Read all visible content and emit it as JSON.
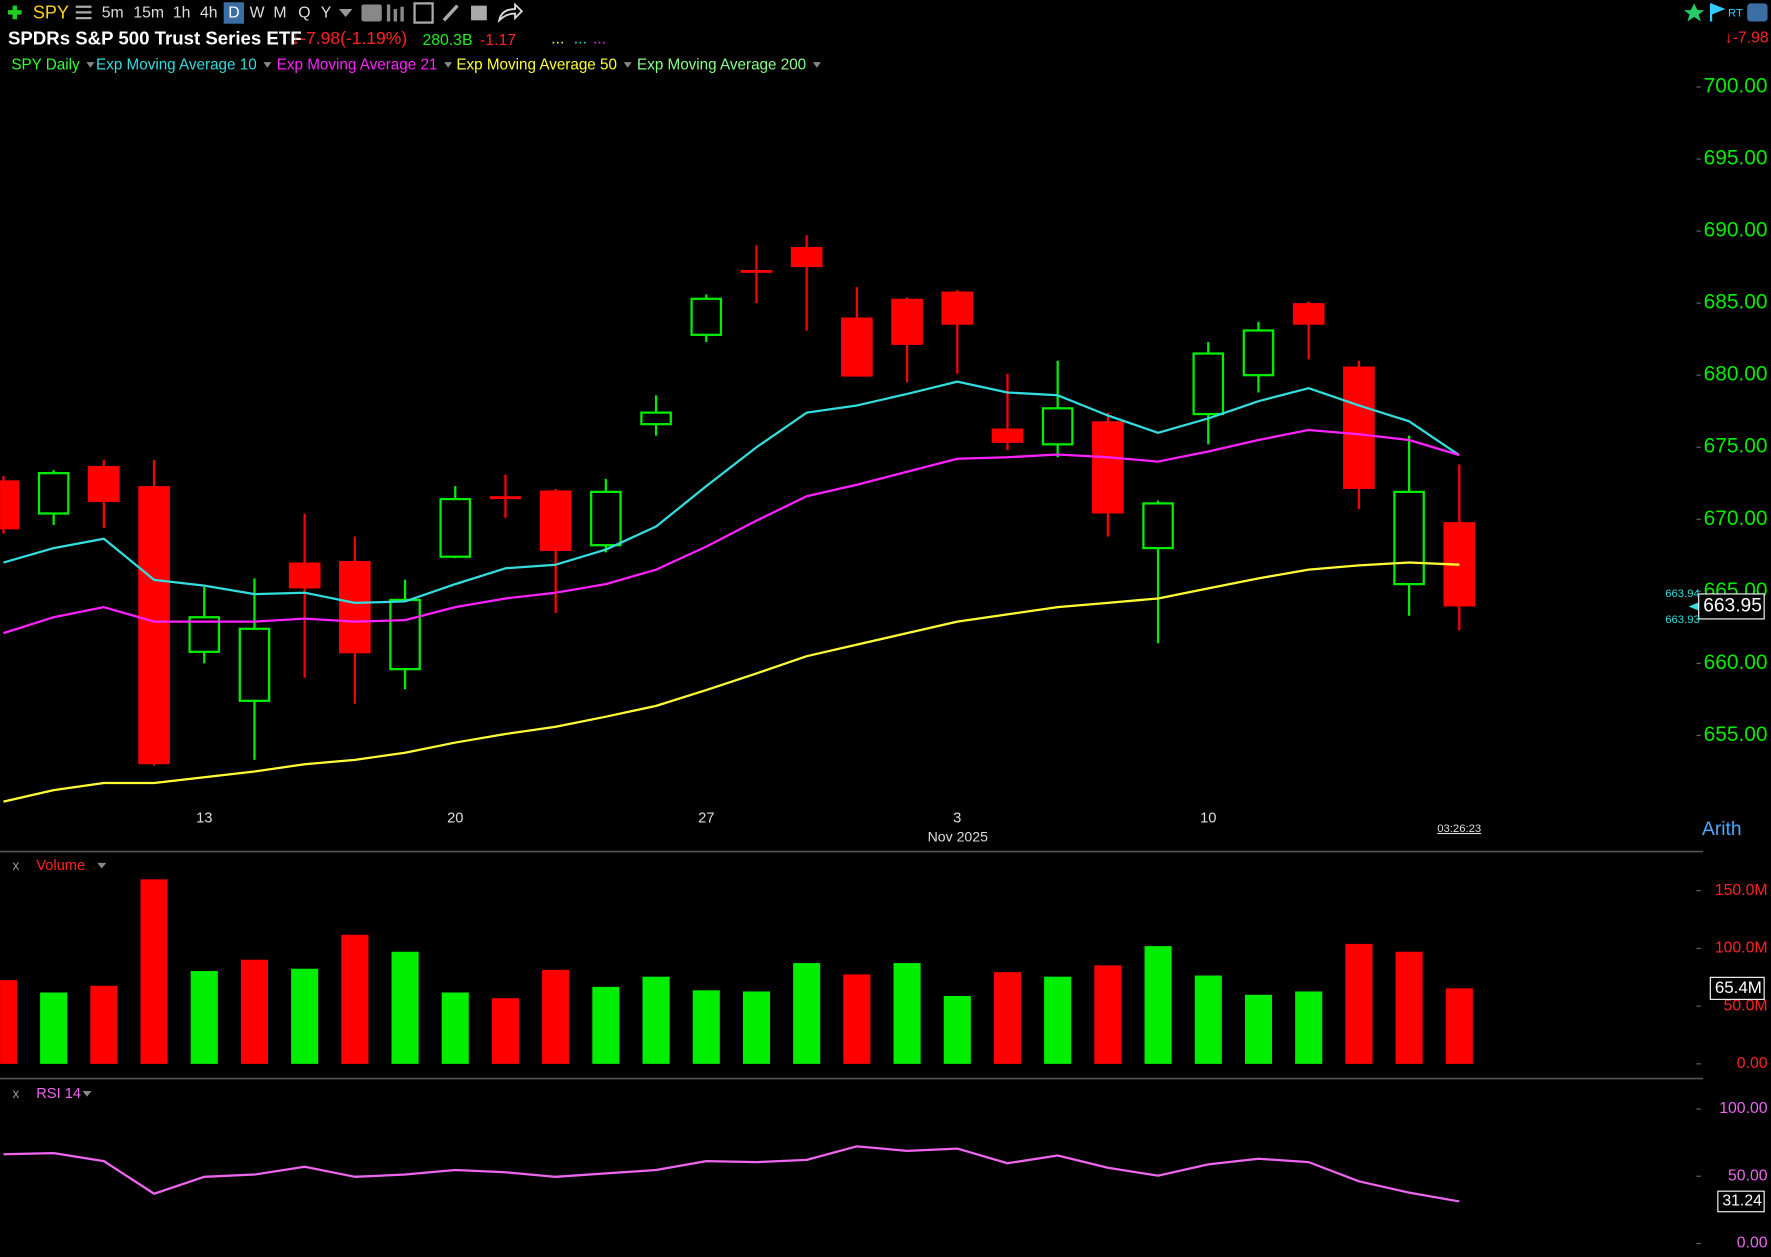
{
  "toolbar": {
    "symbol": "SPY",
    "intervals": [
      "5m",
      "15m",
      "1h",
      "4h",
      "D",
      "W",
      "M",
      "Q",
      "Y"
    ],
    "realtime": "RT"
  },
  "header": {
    "name": "SPDRs S&P 500 Trust Series ETF",
    "change": "↓-7.98(-1.19%)",
    "market_cap": "280.3B",
    "eps": "-1.17",
    "extras": [
      "...",
      "...",
      "..."
    ],
    "right_change": "↓-7.98",
    "scale_mode": "Arith",
    "clock": "03:26:23"
  },
  "chart_data": [
    {
      "type": "candlestick",
      "categories": [
        null,
        null,
        null,
        null,
        "13",
        null,
        null,
        null,
        null,
        "20",
        null,
        null,
        null,
        null,
        "27",
        null,
        null,
        null,
        null,
        "3",
        null,
        null,
        null,
        null,
        "10",
        null,
        null,
        null,
        null,
        null
      ],
      "xlabel": "Nov 2025",
      "up_color": "#00ee00",
      "down_color": "#ff0000",
      "series": [
        {
          "name": "SPY Daily",
          "color": "#33ff33",
          "open": [
            672.7,
            670.4,
            673.7,
            672.3,
            660.8,
            657.4,
            667.0,
            667.1,
            659.6,
            667.4,
            671.6,
            672.0,
            668.2,
            676.6,
            682.8,
            687.3,
            688.9,
            684.0,
            685.3,
            685.8,
            676.3,
            675.2,
            676.8,
            668.0,
            677.3,
            680.0,
            685.0,
            680.6,
            665.5,
            669.8
          ],
          "high": [
            673.0,
            673.4,
            674.1,
            674.1,
            665.3,
            665.9,
            670.4,
            668.8,
            665.8,
            672.3,
            673.1,
            672.1,
            672.8,
            678.6,
            685.6,
            689.0,
            689.7,
            686.1,
            685.4,
            685.9,
            680.1,
            681.0,
            677.4,
            671.3,
            682.3,
            683.7,
            685.1,
            681.0,
            675.8,
            673.8
          ],
          "low": [
            669.0,
            669.6,
            669.4,
            652.9,
            660.0,
            653.3,
            659.0,
            657.2,
            658.2,
            667.3,
            670.1,
            663.5,
            667.7,
            675.8,
            682.3,
            685.0,
            683.1,
            679.9,
            679.5,
            680.1,
            674.8,
            674.3,
            668.8,
            661.4,
            675.2,
            678.8,
            681.1,
            670.7,
            663.3,
            662.3
          ],
          "close": [
            669.3,
            673.2,
            671.2,
            653.0,
            663.2,
            662.4,
            665.2,
            660.7,
            664.4,
            671.4,
            671.4,
            667.8,
            671.9,
            677.4,
            685.3,
            687.1,
            687.5,
            679.9,
            682.1,
            683.5,
            675.3,
            677.7,
            670.4,
            671.1,
            681.5,
            683.1,
            683.5,
            672.1,
            671.9,
            663.95
          ]
        },
        {
          "name": "Exp Moving Average 10",
          "color": "#33dddd",
          "values": [
            667.0,
            668.0,
            668.65,
            665.8,
            665.4,
            664.8,
            664.9,
            664.2,
            664.3,
            665.5,
            666.6,
            666.85,
            667.9,
            669.5,
            672.3,
            675.0,
            677.4,
            677.9,
            678.7,
            679.55,
            678.8,
            678.6,
            677.2,
            676.0,
            677.0,
            678.2,
            679.1,
            677.9,
            676.8,
            674.45
          ]
        },
        {
          "name": "Exp Moving Average 21",
          "color": "#ff22ff",
          "values": [
            662.1,
            663.2,
            663.9,
            662.9,
            662.9,
            662.9,
            663.1,
            662.9,
            663.0,
            663.9,
            664.5,
            664.9,
            665.5,
            666.5,
            668.1,
            669.9,
            671.6,
            672.4,
            673.3,
            674.2,
            674.3,
            674.5,
            674.3,
            674.0,
            674.7,
            675.5,
            676.2,
            675.9,
            675.5,
            674.45
          ]
        },
        {
          "name": "Exp Moving Average 50",
          "color": "#ffff33",
          "values": [
            650.4,
            651.2,
            651.7,
            651.7,
            652.1,
            652.5,
            653.0,
            653.3,
            653.8,
            654.5,
            655.1,
            655.6,
            656.3,
            657.05,
            658.15,
            659.3,
            660.5,
            661.3,
            662.1,
            662.9,
            663.4,
            663.9,
            664.2,
            664.5,
            665.2,
            665.9,
            666.5,
            666.8,
            667.0,
            666.85
          ]
        },
        {
          "name": "Exp Moving Average 200",
          "color": "#88ff88"
        }
      ],
      "ylim": [
        650.2,
        700.8
      ],
      "yticks": [
        {
          "value": 655,
          "label": "655.00"
        },
        {
          "value": 660,
          "label": "660.00"
        },
        {
          "value": 665,
          "label": "665.00"
        },
        {
          "value": 670,
          "label": "670.00"
        },
        {
          "value": 675,
          "label": "675.00"
        },
        {
          "value": 680,
          "label": "680.00"
        },
        {
          "value": 685,
          "label": "685.00"
        },
        {
          "value": 690,
          "label": "690.00"
        },
        {
          "value": 695,
          "label": "695.00"
        },
        {
          "value": 700,
          "label": "700.00"
        }
      ],
      "axis_color": "#00ee00",
      "last_label": "663.95",
      "ask_label": "663.94",
      "bid_label": "663.93"
    },
    {
      "type": "bar",
      "title": "Volume",
      "title_color": "#ff2222",
      "values": [
        72.5,
        61.8,
        67.6,
        159.8,
        80.4,
        90.2,
        82.4,
        111.8,
        97.1,
        61.8,
        56.9,
        81.4,
        66.7,
        75.5,
        63.7,
        62.7,
        87.3,
        77.5,
        87.3,
        58.8,
        79.4,
        75.5,
        85.3,
        102.0,
        76.5,
        59.8,
        62.7,
        103.9,
        97.1,
        65.4
      ],
      "colors": [
        "#ff0000",
        "#00ee00",
        "#ff0000",
        "#ff0000",
        "#00ee00",
        "#ff0000",
        "#00ee00",
        "#ff0000",
        "#00ee00",
        "#00ee00",
        "#ff0000",
        "#ff0000",
        "#00ee00",
        "#00ee00",
        "#00ee00",
        "#00ee00",
        "#00ee00",
        "#ff0000",
        "#00ee00",
        "#00ee00",
        "#ff0000",
        "#00ee00",
        "#ff0000",
        "#00ee00",
        "#00ee00",
        "#00ee00",
        "#00ee00",
        "#ff0000",
        "#ff0000",
        "#ff0000"
      ],
      "ylim": [
        0,
        178
      ],
      "yticks": [
        {
          "value": 0,
          "label": "0.00"
        },
        {
          "value": 50,
          "label": "50.0M"
        },
        {
          "value": 100,
          "label": "100.0M"
        },
        {
          "value": 150,
          "label": "150.0M"
        }
      ],
      "axis_color": "#ff2222",
      "last_label": "65.4M"
    },
    {
      "type": "line",
      "title": "RSI 14",
      "color": "#ee66ee",
      "values": [
        66.4,
        67.2,
        61.3,
        37.0,
        49.6,
        51.3,
        57.1,
        49.6,
        51.3,
        54.6,
        52.9,
        49.6,
        52.1,
        54.6,
        61.3,
        60.5,
        62.2,
        72.3,
        68.9,
        70.6,
        59.7,
        65.5,
        56.3,
        50.4,
        58.8,
        63.0,
        60.5,
        46.2,
        37.8,
        31.24
      ],
      "ylim": [
        0,
        100
      ],
      "yticks": [
        {
          "value": 0,
          "label": "0.00"
        },
        {
          "value": 50,
          "label": "50.00"
        },
        {
          "value": 100,
          "label": "100.00"
        }
      ],
      "axis_color": "#ee66ee",
      "last_label": "31.24"
    }
  ]
}
